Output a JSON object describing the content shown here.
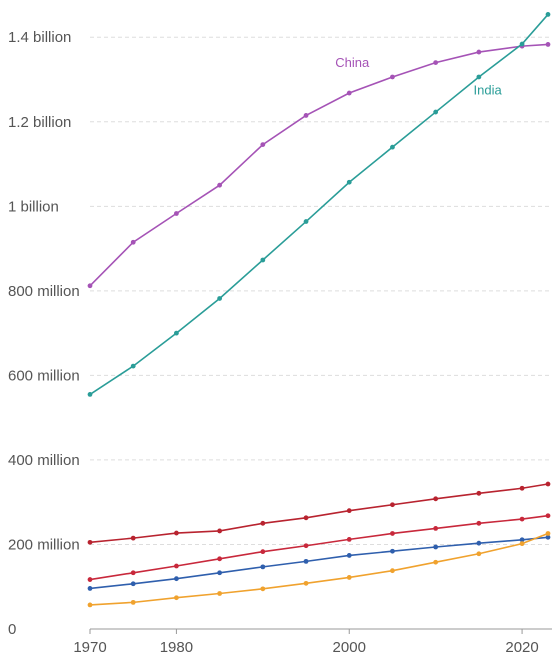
{
  "chart_data": {
    "type": "line",
    "title": "",
    "xlabel": "",
    "ylabel": "",
    "xlim": [
      1970,
      2023
    ],
    "ylim": [
      0,
      1450000000
    ],
    "grid": true,
    "x": [
      1970,
      1975,
      1980,
      1985,
      1990,
      1995,
      2000,
      2005,
      2010,
      2015,
      2020,
      2023
    ],
    "x_ticks": [
      1970,
      1980,
      2000,
      2020
    ],
    "x_tick_labels": [
      "1970",
      "1980",
      "2000",
      "2020"
    ],
    "y_ticks": [
      0,
      200000000,
      400000000,
      600000000,
      800000000,
      1000000000,
      1200000000,
      1400000000
    ],
    "y_tick_labels": [
      "0",
      "200 million",
      "400 million",
      "600 million",
      "800 million",
      "1 billion",
      "1.2 billion",
      "1.4 billion"
    ],
    "series": [
      {
        "name": "China",
        "color": "#a553b6",
        "labeled": true,
        "label_x": 2000,
        "label_y": 1330000000,
        "label_anchor": "start",
        "values": [
          812000000,
          915000000,
          983000000,
          1050000000,
          1146000000,
          1215000000,
          1268000000,
          1306000000,
          1340000000,
          1365000000,
          1379000000,
          1383000000
        ]
      },
      {
        "name": "India",
        "color": "#2a9d98",
        "labeled": true,
        "label_x": 2016,
        "label_y": 1265000000,
        "label_anchor": "start",
        "values": [
          555000000,
          622000000,
          700000000,
          782000000,
          873000000,
          964000000,
          1057000000,
          1140000000,
          1223000000,
          1306000000,
          1384000000,
          1454000000
        ]
      },
      {
        "color": "#b8232f",
        "values": [
          205000000,
          215000000,
          227000000,
          232000000,
          250000000,
          263000000,
          280000000,
          294000000,
          308000000,
          321000000,
          333000000,
          343000000
        ]
      },
      {
        "color": "#c8283b",
        "values": [
          117000000,
          133000000,
          149000000,
          166000000,
          183000000,
          197000000,
          212000000,
          226000000,
          238000000,
          250000000,
          260000000,
          268000000
        ]
      },
      {
        "color": "#2f5fad",
        "values": [
          96000000,
          107000000,
          119000000,
          133000000,
          147000000,
          160000000,
          174000000,
          184000000,
          194000000,
          203000000,
          211000000,
          217000000
        ]
      },
      {
        "color": "#f0a22e",
        "values": [
          57000000,
          63000000,
          74000000,
          84000000,
          95000000,
          108000000,
          122000000,
          138000000,
          158000000,
          178000000,
          202000000,
          226000000
        ]
      }
    ]
  }
}
